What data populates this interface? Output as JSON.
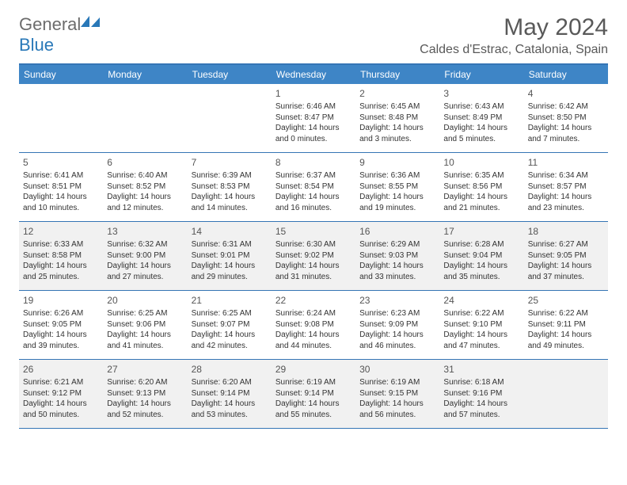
{
  "logo": {
    "text_general": "General",
    "text_blue": "Blue"
  },
  "header": {
    "month_title": "May 2024",
    "location": "Caldes d'Estrac, Catalonia, Spain"
  },
  "colors": {
    "header_bg": "#3e85c6",
    "header_text": "#ffffff",
    "border": "#3575b5",
    "shaded_bg": "#f1f1f1",
    "text": "#333333",
    "title_text": "#595959",
    "logo_gray": "#6c6c6c",
    "logo_blue": "#2978b8"
  },
  "day_names": [
    "Sunday",
    "Monday",
    "Tuesday",
    "Wednesday",
    "Thursday",
    "Friday",
    "Saturday"
  ],
  "weeks": [
    {
      "shaded": false,
      "days": [
        {
          "num": "",
          "sunrise": "",
          "sunset": "",
          "daylight": ""
        },
        {
          "num": "",
          "sunrise": "",
          "sunset": "",
          "daylight": ""
        },
        {
          "num": "",
          "sunrise": "",
          "sunset": "",
          "daylight": ""
        },
        {
          "num": "1",
          "sunrise": "Sunrise: 6:46 AM",
          "sunset": "Sunset: 8:47 PM",
          "daylight": "Daylight: 14 hours and 0 minutes."
        },
        {
          "num": "2",
          "sunrise": "Sunrise: 6:45 AM",
          "sunset": "Sunset: 8:48 PM",
          "daylight": "Daylight: 14 hours and 3 minutes."
        },
        {
          "num": "3",
          "sunrise": "Sunrise: 6:43 AM",
          "sunset": "Sunset: 8:49 PM",
          "daylight": "Daylight: 14 hours and 5 minutes."
        },
        {
          "num": "4",
          "sunrise": "Sunrise: 6:42 AM",
          "sunset": "Sunset: 8:50 PM",
          "daylight": "Daylight: 14 hours and 7 minutes."
        }
      ]
    },
    {
      "shaded": false,
      "days": [
        {
          "num": "5",
          "sunrise": "Sunrise: 6:41 AM",
          "sunset": "Sunset: 8:51 PM",
          "daylight": "Daylight: 14 hours and 10 minutes."
        },
        {
          "num": "6",
          "sunrise": "Sunrise: 6:40 AM",
          "sunset": "Sunset: 8:52 PM",
          "daylight": "Daylight: 14 hours and 12 minutes."
        },
        {
          "num": "7",
          "sunrise": "Sunrise: 6:39 AM",
          "sunset": "Sunset: 8:53 PM",
          "daylight": "Daylight: 14 hours and 14 minutes."
        },
        {
          "num": "8",
          "sunrise": "Sunrise: 6:37 AM",
          "sunset": "Sunset: 8:54 PM",
          "daylight": "Daylight: 14 hours and 16 minutes."
        },
        {
          "num": "9",
          "sunrise": "Sunrise: 6:36 AM",
          "sunset": "Sunset: 8:55 PM",
          "daylight": "Daylight: 14 hours and 19 minutes."
        },
        {
          "num": "10",
          "sunrise": "Sunrise: 6:35 AM",
          "sunset": "Sunset: 8:56 PM",
          "daylight": "Daylight: 14 hours and 21 minutes."
        },
        {
          "num": "11",
          "sunrise": "Sunrise: 6:34 AM",
          "sunset": "Sunset: 8:57 PM",
          "daylight": "Daylight: 14 hours and 23 minutes."
        }
      ]
    },
    {
      "shaded": true,
      "days": [
        {
          "num": "12",
          "sunrise": "Sunrise: 6:33 AM",
          "sunset": "Sunset: 8:58 PM",
          "daylight": "Daylight: 14 hours and 25 minutes."
        },
        {
          "num": "13",
          "sunrise": "Sunrise: 6:32 AM",
          "sunset": "Sunset: 9:00 PM",
          "daylight": "Daylight: 14 hours and 27 minutes."
        },
        {
          "num": "14",
          "sunrise": "Sunrise: 6:31 AM",
          "sunset": "Sunset: 9:01 PM",
          "daylight": "Daylight: 14 hours and 29 minutes."
        },
        {
          "num": "15",
          "sunrise": "Sunrise: 6:30 AM",
          "sunset": "Sunset: 9:02 PM",
          "daylight": "Daylight: 14 hours and 31 minutes."
        },
        {
          "num": "16",
          "sunrise": "Sunrise: 6:29 AM",
          "sunset": "Sunset: 9:03 PM",
          "daylight": "Daylight: 14 hours and 33 minutes."
        },
        {
          "num": "17",
          "sunrise": "Sunrise: 6:28 AM",
          "sunset": "Sunset: 9:04 PM",
          "daylight": "Daylight: 14 hours and 35 minutes."
        },
        {
          "num": "18",
          "sunrise": "Sunrise: 6:27 AM",
          "sunset": "Sunset: 9:05 PM",
          "daylight": "Daylight: 14 hours and 37 minutes."
        }
      ]
    },
    {
      "shaded": false,
      "days": [
        {
          "num": "19",
          "sunrise": "Sunrise: 6:26 AM",
          "sunset": "Sunset: 9:05 PM",
          "daylight": "Daylight: 14 hours and 39 minutes."
        },
        {
          "num": "20",
          "sunrise": "Sunrise: 6:25 AM",
          "sunset": "Sunset: 9:06 PM",
          "daylight": "Daylight: 14 hours and 41 minutes."
        },
        {
          "num": "21",
          "sunrise": "Sunrise: 6:25 AM",
          "sunset": "Sunset: 9:07 PM",
          "daylight": "Daylight: 14 hours and 42 minutes."
        },
        {
          "num": "22",
          "sunrise": "Sunrise: 6:24 AM",
          "sunset": "Sunset: 9:08 PM",
          "daylight": "Daylight: 14 hours and 44 minutes."
        },
        {
          "num": "23",
          "sunrise": "Sunrise: 6:23 AM",
          "sunset": "Sunset: 9:09 PM",
          "daylight": "Daylight: 14 hours and 46 minutes."
        },
        {
          "num": "24",
          "sunrise": "Sunrise: 6:22 AM",
          "sunset": "Sunset: 9:10 PM",
          "daylight": "Daylight: 14 hours and 47 minutes."
        },
        {
          "num": "25",
          "sunrise": "Sunrise: 6:22 AM",
          "sunset": "Sunset: 9:11 PM",
          "daylight": "Daylight: 14 hours and 49 minutes."
        }
      ]
    },
    {
      "shaded": true,
      "days": [
        {
          "num": "26",
          "sunrise": "Sunrise: 6:21 AM",
          "sunset": "Sunset: 9:12 PM",
          "daylight": "Daylight: 14 hours and 50 minutes."
        },
        {
          "num": "27",
          "sunrise": "Sunrise: 6:20 AM",
          "sunset": "Sunset: 9:13 PM",
          "daylight": "Daylight: 14 hours and 52 minutes."
        },
        {
          "num": "28",
          "sunrise": "Sunrise: 6:20 AM",
          "sunset": "Sunset: 9:14 PM",
          "daylight": "Daylight: 14 hours and 53 minutes."
        },
        {
          "num": "29",
          "sunrise": "Sunrise: 6:19 AM",
          "sunset": "Sunset: 9:14 PM",
          "daylight": "Daylight: 14 hours and 55 minutes."
        },
        {
          "num": "30",
          "sunrise": "Sunrise: 6:19 AM",
          "sunset": "Sunset: 9:15 PM",
          "daylight": "Daylight: 14 hours and 56 minutes."
        },
        {
          "num": "31",
          "sunrise": "Sunrise: 6:18 AM",
          "sunset": "Sunset: 9:16 PM",
          "daylight": "Daylight: 14 hours and 57 minutes."
        },
        {
          "num": "",
          "sunrise": "",
          "sunset": "",
          "daylight": ""
        }
      ]
    }
  ]
}
